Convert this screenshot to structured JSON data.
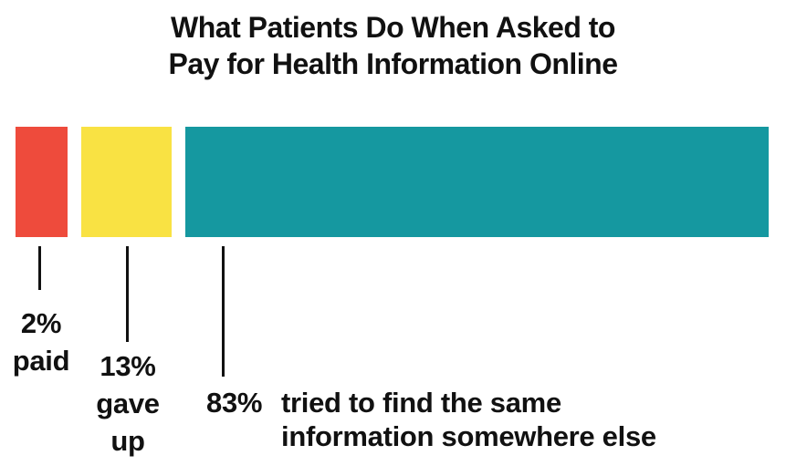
{
  "title": {
    "line1": "What Patients Do When Asked to",
    "line2": "Pay for Health Information Online"
  },
  "labels": {
    "paid": {
      "pct": "2%",
      "line1": "paid"
    },
    "gave_up": {
      "pct": "13%",
      "line1": "gave",
      "line2": "up"
    },
    "elsewhere": {
      "pct": "83%",
      "line1": "tried to find the same",
      "line2": "information somewhere else"
    }
  },
  "chart_data": {
    "type": "bar",
    "orientation": "horizontal",
    "title": "What Patients Do When Asked to Pay for Health Information Online",
    "categories": [
      "paid",
      "gave up",
      "tried to find the same information somewhere else"
    ],
    "values": [
      2,
      13,
      83
    ],
    "unit": "percent",
    "colors": [
      "#EE4B3C",
      "#F9E243",
      "#1598A0"
    ],
    "text_color": "#111111",
    "background_color": "#FFFFFF",
    "legend_position": "none",
    "grid": false,
    "axes_visible": false,
    "annotation_style": "leader-lines-below-bars"
  }
}
